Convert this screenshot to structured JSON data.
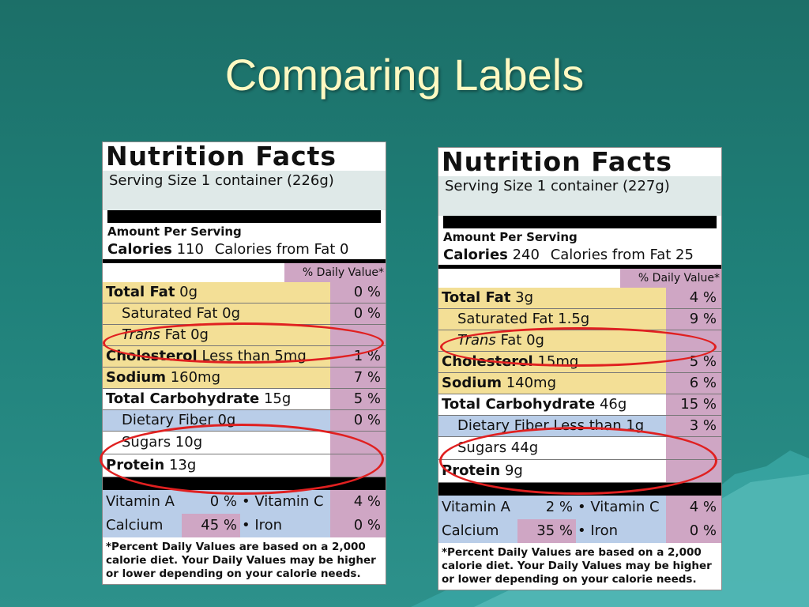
{
  "slide": {
    "title": "Comparing Labels"
  },
  "labels": [
    {
      "header": "Nutrition Facts",
      "serving": "Serving Size 1 container (226g)",
      "amount": "Amount Per Serving",
      "calories_label": "Calories",
      "calories_value": "110",
      "calories_fat": "Calories from Fat 0",
      "dv_header": "% Daily Value*",
      "total_fat": {
        "label": "Total Fat",
        "value": "0g",
        "pct": "0 %"
      },
      "sat_fat": {
        "label": "Saturated Fat 0g",
        "pct": "0 %"
      },
      "trans_fat": {
        "label_italic": "Trans",
        "label": "Fat 0g"
      },
      "cholesterol": {
        "label": "Cholesterol",
        "value": "Less than 5mg",
        "pct": "1 %"
      },
      "sodium": {
        "label": "Sodium",
        "value": "160mg",
        "pct": "7 %"
      },
      "total_carb": {
        "label": "Total Carbohydrate",
        "value": "15g",
        "pct": "5 %"
      },
      "fiber": {
        "label": "Dietary Fiber 0g",
        "pct": "0 %"
      },
      "sugars": {
        "label": "Sugars 10g"
      },
      "protein": {
        "label": "Protein",
        "value": "13g"
      },
      "vitamin_a": {
        "label": "Vitamin A",
        "pct": "0 %"
      },
      "vitamin_c": {
        "label": "• Vitamin C",
        "pct": "4 %"
      },
      "calcium": {
        "label": "Calcium",
        "pct": "45 %"
      },
      "iron": {
        "label": "• Iron",
        "pct": "0 %"
      },
      "footnote": "*Percent Daily Values are based on a 2,000 calorie diet. Your Daily Values may be higher or lower depending on your calorie needs."
    },
    {
      "header": "Nutrition Facts",
      "serving": "Serving Size 1 container (227g)",
      "amount": "Amount Per Serving",
      "calories_label": "Calories",
      "calories_value": "240",
      "calories_fat": "Calories from Fat 25",
      "dv_header": "% Daily Value*",
      "total_fat": {
        "label": "Total Fat",
        "value": "3g",
        "pct": "4 %"
      },
      "sat_fat": {
        "label": "Saturated Fat 1.5g",
        "pct": "9 %"
      },
      "trans_fat": {
        "label_italic": "Trans",
        "label": "Fat 0g"
      },
      "cholesterol": {
        "label": "Cholesterol",
        "value": "15mg",
        "pct": "5 %"
      },
      "sodium": {
        "label": "Sodium",
        "value": "140mg",
        "pct": "6 %"
      },
      "total_carb": {
        "label": "Total Carbohydrate",
        "value": "46g",
        "pct": "15 %"
      },
      "fiber": {
        "label": "Dietary Fiber Less than 1g",
        "pct": "3 %"
      },
      "sugars": {
        "label": "Sugars 44g"
      },
      "protein": {
        "label": "Protein",
        "value": "9g"
      },
      "vitamin_a": {
        "label": "Vitamin A",
        "pct": "2 %"
      },
      "vitamin_c": {
        "label": "• Vitamin C",
        "pct": "4 %"
      },
      "calcium": {
        "label": "Calcium",
        "pct": "35 %"
      },
      "iron": {
        "label": "• Iron",
        "pct": "0 %"
      },
      "footnote": "*Percent Daily Values are based on a 2,000 calorie diet. Your Daily Values may be higher or lower depending on your calorie needs."
    }
  ]
}
